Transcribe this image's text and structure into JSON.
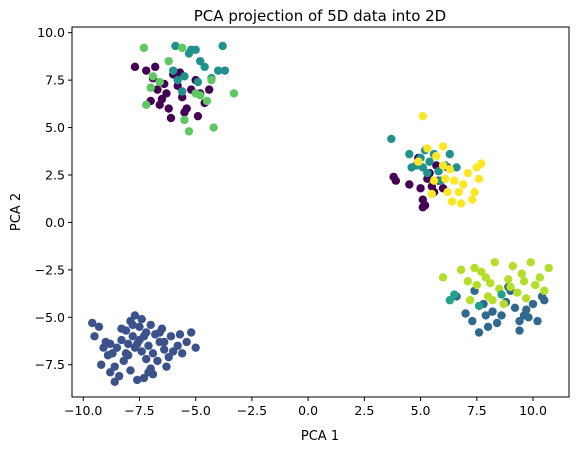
{
  "chart_data": {
    "type": "scatter",
    "title": "PCA projection of 5D data into 2D",
    "xlabel": "PCA 1",
    "ylabel": "PCA 2",
    "xlim": [
      -10.5,
      11.6
    ],
    "ylim": [
      -9.2,
      10.3
    ],
    "xticks": [
      -10.0,
      -7.5,
      -5.0,
      -2.5,
      0.0,
      2.5,
      5.0,
      7.5,
      10.0
    ],
    "xtick_labels": [
      "−10.0",
      "−7.5",
      "−5.0",
      "−2.5",
      "0.0",
      "2.5",
      "5.0",
      "7.5",
      "10.0"
    ],
    "yticks": [
      -7.5,
      -5.0,
      -2.5,
      0.0,
      2.5,
      5.0,
      7.5,
      10.0
    ],
    "ytick_labels": [
      "−7.5",
      "−5.0",
      "−2.5",
      "0.0",
      "2.5",
      "5.0",
      "7.5",
      "10.0"
    ],
    "grid": false,
    "legend": "none",
    "colors": {
      "dark_purple": "#440154",
      "blue": "#3b528b",
      "teal": "#21918c",
      "green": "#5ec962",
      "lime": "#b5de2b",
      "yellow": "#fde725",
      "slate": "#31688e",
      "aqua": "#20a386"
    },
    "series": [
      {
        "color": "#3b528b",
        "points": [
          [
            -9.6,
            -5.3
          ],
          [
            -9.3,
            -5.5
          ],
          [
            -9.5,
            -6.0
          ],
          [
            -9.1,
            -6.6
          ],
          [
            -8.9,
            -7.0
          ],
          [
            -9.2,
            -7.5
          ],
          [
            -8.8,
            -7.9
          ],
          [
            -8.6,
            -8.4
          ],
          [
            -8.4,
            -8.1
          ],
          [
            -8.2,
            -7.3
          ],
          [
            -8.5,
            -6.6
          ],
          [
            -8.3,
            -6.2
          ],
          [
            -8.1,
            -5.7
          ],
          [
            -7.9,
            -5.2
          ],
          [
            -7.7,
            -4.9
          ],
          [
            -7.5,
            -5.5
          ],
          [
            -7.8,
            -6.0
          ],
          [
            -7.6,
            -6.4
          ],
          [
            -7.4,
            -6.8
          ],
          [
            -7.2,
            -7.2
          ],
          [
            -7.0,
            -7.7
          ],
          [
            -7.3,
            -8.2
          ],
          [
            -7.6,
            -8.3
          ],
          [
            -7.9,
            -7.8
          ],
          [
            -8.0,
            -7.0
          ],
          [
            -7.7,
            -6.6
          ],
          [
            -7.5,
            -6.2
          ],
          [
            -7.2,
            -5.8
          ],
          [
            -7.0,
            -5.4
          ],
          [
            -6.8,
            -5.9
          ],
          [
            -6.6,
            -6.3
          ],
          [
            -6.4,
            -6.7
          ],
          [
            -6.2,
            -7.1
          ],
          [
            -6.0,
            -6.8
          ],
          [
            -5.8,
            -6.5
          ],
          [
            -5.6,
            -6.9
          ],
          [
            -5.4,
            -6.3
          ],
          [
            -5.2,
            -5.8
          ],
          [
            -5.0,
            -6.6
          ],
          [
            -6.5,
            -5.6
          ],
          [
            -6.9,
            -6.9
          ],
          [
            -7.1,
            -6.5
          ],
          [
            -6.7,
            -7.3
          ],
          [
            -6.3,
            -7.6
          ],
          [
            -8.7,
            -6.9
          ],
          [
            -8.8,
            -6.4
          ],
          [
            -9.0,
            -6.3
          ],
          [
            -8.0,
            -6.4
          ],
          [
            -7.3,
            -6.0
          ],
          [
            -6.1,
            -6.0
          ],
          [
            -7.8,
            -5.4
          ],
          [
            -6.9,
            -8.0
          ],
          [
            -8.3,
            -5.6
          ],
          [
            -8.6,
            -7.6
          ],
          [
            -6.4,
            -6.3
          ],
          [
            -7.1,
            -7.9
          ],
          [
            -5.7,
            -5.9
          ],
          [
            -8.1,
            -6.9
          ],
          [
            -7.4,
            -5.1
          ],
          [
            -6.6,
            -5.8
          ]
        ]
      },
      {
        "color": "#440154",
        "points": [
          [
            -7.7,
            8.2
          ],
          [
            -7.2,
            8.0
          ],
          [
            -6.9,
            7.6
          ],
          [
            -6.7,
            7.0
          ],
          [
            -6.5,
            6.5
          ],
          [
            -6.2,
            6.0
          ],
          [
            -6.4,
            7.3
          ],
          [
            -6.0,
            7.8
          ],
          [
            -5.8,
            7.2
          ],
          [
            -5.6,
            6.6
          ],
          [
            -5.4,
            6.0
          ],
          [
            -5.2,
            7.0
          ],
          [
            -5.0,
            7.5
          ],
          [
            -4.8,
            6.8
          ],
          [
            -4.6,
            6.3
          ],
          [
            -6.8,
            8.2
          ],
          [
            -6.3,
            6.8
          ],
          [
            -5.5,
            5.8
          ],
          [
            -4.9,
            5.6
          ],
          [
            -7.0,
            6.4
          ],
          [
            -6.1,
            5.5
          ],
          [
            -5.7,
            7.9
          ],
          [
            -4.4,
            7.0
          ],
          [
            -6.6,
            6.2
          ],
          [
            3.8,
            2.4
          ],
          [
            3.9,
            2.2
          ],
          [
            4.5,
            2.0
          ],
          [
            5.0,
            1.8
          ],
          [
            5.3,
            2.3
          ],
          [
            5.1,
            1.2
          ],
          [
            5.1,
            0.8
          ],
          [
            5.2,
            0.9
          ],
          [
            5.6,
            1.6
          ],
          [
            5.8,
            2.2
          ],
          [
            6.0,
            1.8
          ],
          [
            5.4,
            2.6
          ],
          [
            5.7,
            3.0
          ],
          [
            4.9,
            3.4
          ],
          [
            6.2,
            2.9
          ],
          [
            5.5,
            1.9
          ]
        ]
      },
      {
        "color": "#21918c",
        "points": [
          [
            -6.0,
            8.0
          ],
          [
            -5.8,
            7.5
          ],
          [
            -5.5,
            7.7
          ],
          [
            -5.3,
            8.9
          ],
          [
            -5.2,
            9.1
          ],
          [
            -4.8,
            8.5
          ],
          [
            -4.6,
            8.2
          ],
          [
            -4.3,
            7.6
          ],
          [
            -4.0,
            8.0
          ],
          [
            -3.7,
            8.0
          ],
          [
            -3.8,
            9.3
          ],
          [
            -5.9,
            9.3
          ],
          [
            -5.0,
            9.1
          ],
          [
            -5.6,
            6.9
          ],
          [
            -4.9,
            7.4
          ],
          [
            3.7,
            4.4
          ],
          [
            4.5,
            3.6
          ],
          [
            4.8,
            3.0
          ],
          [
            5.0,
            3.4
          ],
          [
            5.2,
            3.8
          ],
          [
            5.4,
            3.2
          ],
          [
            5.6,
            3.6
          ],
          [
            5.8,
            2.7
          ],
          [
            6.1,
            3.0
          ],
          [
            6.3,
            3.6
          ],
          [
            4.6,
            2.9
          ],
          [
            5.3,
            2.6
          ],
          [
            6.6,
            2.9
          ],
          [
            5.9,
            2.2
          ],
          [
            5.1,
            2.9
          ]
        ]
      },
      {
        "color": "#5ec962",
        "points": [
          [
            -7.3,
            9.2
          ],
          [
            -7.0,
            7.1
          ],
          [
            -6.6,
            7.4
          ],
          [
            -6.2,
            8.5
          ],
          [
            -5.5,
            5.4
          ],
          [
            -5.3,
            4.8
          ],
          [
            -4.8,
            6.7
          ],
          [
            -4.5,
            6.4
          ],
          [
            -4.3,
            7.5
          ],
          [
            -3.3,
            6.8
          ],
          [
            -4.2,
            5.0
          ],
          [
            -5.6,
            9.2
          ],
          [
            -6.9,
            7.7
          ],
          [
            -7.2,
            6.2
          ],
          [
            -5.0,
            6.8
          ]
        ]
      },
      {
        "color": "#31688e",
        "points": [
          [
            6.6,
            -3.9
          ],
          [
            7.0,
            -4.8
          ],
          [
            7.3,
            -5.2
          ],
          [
            7.4,
            -3.6
          ],
          [
            7.8,
            -4.3
          ],
          [
            8.2,
            -4.7
          ],
          [
            8.4,
            -5.3
          ],
          [
            8.6,
            -4.9
          ],
          [
            8.8,
            -4.2
          ],
          [
            9.0,
            -3.6
          ],
          [
            9.2,
            -4.5
          ],
          [
            9.4,
            -5.2
          ],
          [
            9.6,
            -4.9
          ],
          [
            9.8,
            -5.0
          ],
          [
            10.0,
            -4.3
          ],
          [
            10.2,
            -5.2
          ],
          [
            10.4,
            -3.9
          ],
          [
            8.0,
            -5.5
          ],
          [
            7.6,
            -5.8
          ],
          [
            9.4,
            -5.7
          ],
          [
            8.9,
            -3.4
          ],
          [
            9.7,
            -4.6
          ],
          [
            10.5,
            -4.1
          ],
          [
            7.9,
            -4.9
          ]
        ]
      },
      {
        "color": "#b5de2b",
        "points": [
          [
            6.0,
            -2.9
          ],
          [
            6.8,
            -2.5
          ],
          [
            7.2,
            -4.1
          ],
          [
            7.5,
            -3.3
          ],
          [
            7.7,
            -2.6
          ],
          [
            7.9,
            -2.9
          ],
          [
            8.1,
            -3.2
          ],
          [
            8.3,
            -2.1
          ],
          [
            8.5,
            -3.5
          ],
          [
            8.7,
            -4.3
          ],
          [
            8.9,
            -3.0
          ],
          [
            9.1,
            -2.3
          ],
          [
            9.3,
            -3.7
          ],
          [
            9.5,
            -2.7
          ],
          [
            9.7,
            -4.0
          ],
          [
            9.9,
            -2.1
          ],
          [
            10.1,
            -3.3
          ],
          [
            10.3,
            -2.9
          ],
          [
            10.5,
            -3.6
          ],
          [
            10.7,
            -2.4
          ],
          [
            8.2,
            -4.1
          ],
          [
            7.4,
            -2.4
          ],
          [
            9.0,
            -3.4
          ],
          [
            8.0,
            -3.9
          ],
          [
            7.1,
            -3.1
          ],
          [
            9.6,
            -3.1
          ]
        ]
      },
      {
        "color": "#fde725",
        "points": [
          [
            5.1,
            5.6
          ],
          [
            5.3,
            3.9
          ],
          [
            5.7,
            3.5
          ],
          [
            6.0,
            4.0
          ],
          [
            6.3,
            2.8
          ],
          [
            6.5,
            2.2
          ],
          [
            6.7,
            1.6
          ],
          [
            6.9,
            2.0
          ],
          [
            7.1,
            2.6
          ],
          [
            7.3,
            1.2
          ],
          [
            7.5,
            2.9
          ],
          [
            7.7,
            3.1
          ],
          [
            7.6,
            2.3
          ],
          [
            7.4,
            1.6
          ],
          [
            6.8,
            1.0
          ],
          [
            6.4,
            1.1
          ],
          [
            6.0,
            3.0
          ],
          [
            5.6,
            2.2
          ],
          [
            5.5,
            1.5
          ],
          [
            6.2,
            1.6
          ],
          [
            4.9,
            3.2
          ],
          [
            6.1,
            2.3
          ]
        ]
      },
      {
        "color": "#20a386",
        "points": [
          [
            6.3,
            -4.1
          ],
          [
            6.5,
            -3.8
          ],
          [
            7.6,
            -4.4
          ],
          [
            8.6,
            -3.8
          ]
        ]
      }
    ]
  }
}
